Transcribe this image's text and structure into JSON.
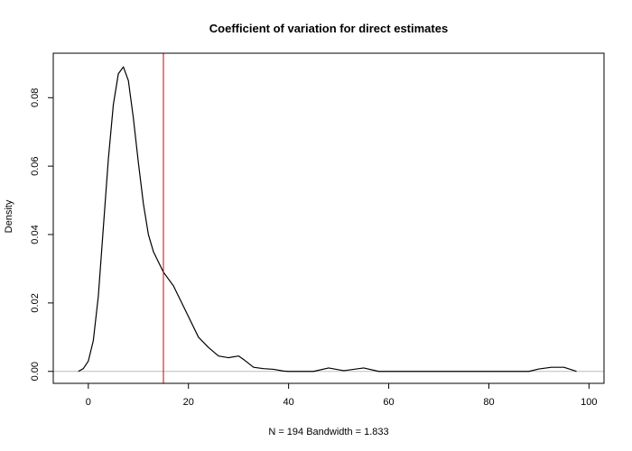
{
  "chart_data": {
    "type": "line",
    "title": "Coefficient of variation for direct estimates",
    "xlabel": "N = 194   Bandwidth = 1.833",
    "ylabel": "Density",
    "xlim": [
      -7,
      103
    ],
    "ylim": [
      -0.0035,
      0.093
    ],
    "x_ticks": [
      0,
      20,
      40,
      60,
      80,
      100
    ],
    "y_ticks": [
      0.0,
      0.02,
      0.04,
      0.06,
      0.08
    ],
    "y_tick_labels": [
      "0.00",
      "0.02",
      "0.04",
      "0.06",
      "0.08"
    ],
    "grid": false,
    "legend": "none",
    "series": [
      {
        "color": "#000000",
        "x": [
          -2.0,
          -1.0,
          0.0,
          1.0,
          2.0,
          3.0,
          4.0,
          5.0,
          6.0,
          7.0,
          8.0,
          9.0,
          10.0,
          11.0,
          12.0,
          13.0,
          14.0,
          15.0,
          16.0,
          17.0,
          18.0,
          19.0,
          20.0,
          22.0,
          24.0,
          26.0,
          28.0,
          30.0,
          31.0,
          33.0,
          35.0,
          37.0,
          39.0,
          40.0,
          45.0,
          48.0,
          51.0,
          55.0,
          58.0,
          88.0,
          90.0,
          92.5,
          95.0,
          97.5
        ],
        "y": [
          0.0,
          0.0008,
          0.003,
          0.009,
          0.022,
          0.042,
          0.062,
          0.078,
          0.087,
          0.089,
          0.085,
          0.074,
          0.061,
          0.049,
          0.04,
          0.035,
          0.032,
          0.029,
          0.027,
          0.025,
          0.022,
          0.019,
          0.016,
          0.01,
          0.007,
          0.0045,
          0.004,
          0.0045,
          0.0035,
          0.0012,
          0.0008,
          0.0006,
          0.0001,
          0.0,
          0.0,
          0.001,
          0.0002,
          0.001,
          0.0,
          0.0,
          0.0007,
          0.0012,
          0.0012,
          0.0
        ]
      }
    ],
    "reference_lines": [
      {
        "orientation": "vertical",
        "x": 15,
        "color": "#cc0000"
      },
      {
        "orientation": "horizontal",
        "y": 0,
        "color": "#bdbdbd"
      }
    ]
  }
}
